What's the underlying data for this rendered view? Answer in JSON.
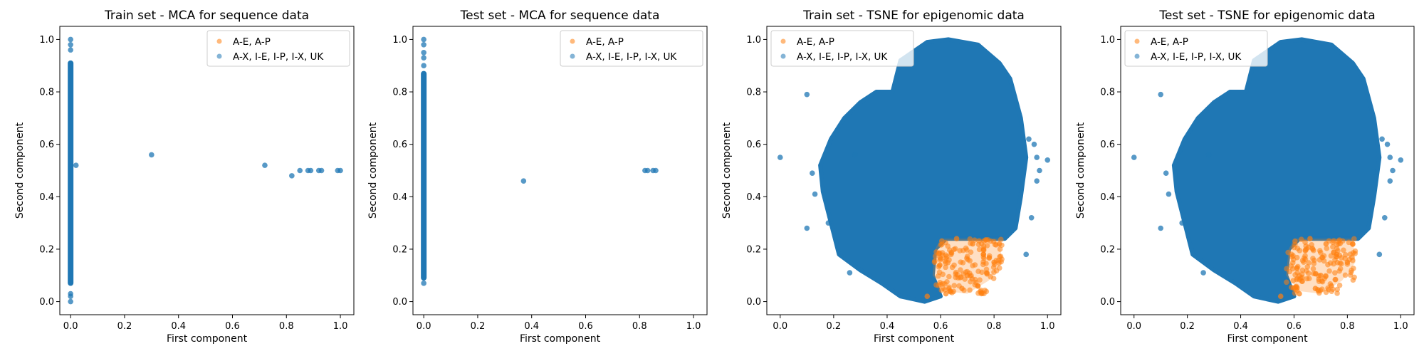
{
  "colors": {
    "orange": "#ff7f0e",
    "blue": "#1f77b4"
  },
  "chart_data": [
    {
      "type": "scatter",
      "title": "Train set - MCA for sequence data",
      "xlabel": "First component",
      "ylabel": "Second component",
      "xlim": [
        -0.04,
        1.05
      ],
      "ylim": [
        -0.05,
        1.05
      ],
      "xticks": [
        0.0,
        0.2,
        0.4,
        0.6,
        0.8,
        1.0
      ],
      "xtick_labels": [
        "0.0",
        "0.2",
        "0.4",
        "0.6",
        "0.8",
        "1.0"
      ],
      "yticks": [
        0.0,
        0.2,
        0.4,
        0.6,
        0.8,
        1.0
      ],
      "ytick_labels": [
        "0.0",
        "0.2",
        "0.4",
        "0.6",
        "0.8",
        "1.0"
      ],
      "legend_position": "top-right",
      "series": [
        {
          "name": "A-E, A-P",
          "color": "#ff7f0e",
          "points": []
        },
        {
          "name": "A-X, I-E, I-P, I-X, UK",
          "color": "#1f77b4",
          "line_x": 0.0,
          "line_y_range": [
            0.06,
            0.92
          ],
          "points": [
            [
              0,
              0.0
            ],
            [
              0,
              0.02
            ],
            [
              0,
              0.03
            ],
            [
              0,
              0.96
            ],
            [
              0,
              0.98
            ],
            [
              0,
              1.0
            ],
            [
              0.02,
              0.52
            ],
            [
              0.3,
              0.56
            ],
            [
              0.72,
              0.52
            ],
            [
              0.82,
              0.48
            ],
            [
              0.85,
              0.5
            ],
            [
              0.88,
              0.5
            ],
            [
              0.89,
              0.5
            ],
            [
              0.92,
              0.5
            ],
            [
              0.93,
              0.5
            ],
            [
              0.99,
              0.5
            ],
            [
              1.0,
              0.5
            ]
          ]
        }
      ]
    },
    {
      "type": "scatter",
      "title": "Test set - MCA for sequence data",
      "xlabel": "First component",
      "ylabel": "Second component",
      "xlim": [
        -0.04,
        1.05
      ],
      "ylim": [
        -0.05,
        1.05
      ],
      "xticks": [
        0.0,
        0.2,
        0.4,
        0.6,
        0.8,
        1.0
      ],
      "xtick_labels": [
        "0.0",
        "0.2",
        "0.4",
        "0.6",
        "0.8",
        "1.0"
      ],
      "yticks": [
        0.0,
        0.2,
        0.4,
        0.6,
        0.8,
        1.0
      ],
      "ytick_labels": [
        "0.0",
        "0.2",
        "0.4",
        "0.6",
        "0.8",
        "1.0"
      ],
      "legend_position": "top-right",
      "series": [
        {
          "name": "A-E, A-P",
          "color": "#ff7f0e",
          "points": []
        },
        {
          "name": "A-X, I-E, I-P, I-X, UK",
          "color": "#1f77b4",
          "line_x": 0.0,
          "line_y_range": [
            0.08,
            0.88
          ],
          "points": [
            [
              0,
              0.07
            ],
            [
              0,
              0.9
            ],
            [
              0,
              0.93
            ],
            [
              0,
              0.95
            ],
            [
              0,
              0.98
            ],
            [
              0,
              1.0
            ],
            [
              0.37,
              0.46
            ],
            [
              0.82,
              0.5
            ],
            [
              0.83,
              0.5
            ],
            [
              0.85,
              0.5
            ],
            [
              0.86,
              0.5
            ]
          ]
        }
      ]
    },
    {
      "type": "scatter",
      "title": "Train set - TSNE for epigenomic data",
      "xlabel": "First component",
      "ylabel": "Second component",
      "xlim": [
        -0.05,
        1.05
      ],
      "ylim": [
        -0.05,
        1.05
      ],
      "xticks": [
        0.0,
        0.2,
        0.4,
        0.6,
        0.8,
        1.0
      ],
      "xtick_labels": [
        "0.0",
        "0.2",
        "0.4",
        "0.6",
        "0.8",
        "1.0"
      ],
      "yticks": [
        0.0,
        0.2,
        0.4,
        0.6,
        0.8,
        1.0
      ],
      "ytick_labels": [
        "0.0",
        "0.2",
        "0.4",
        "0.6",
        "0.8",
        "1.0"
      ],
      "legend_position": "top-left",
      "series": [
        {
          "name": "A-E, A-P",
          "color": "#ff7f0e",
          "region": [
            [
              0.6,
              0.24
            ],
            [
              0.82,
              0.24
            ],
            [
              0.83,
              0.15
            ],
            [
              0.78,
              0.08
            ],
            [
              0.7,
              0.03
            ],
            [
              0.62,
              0.04
            ],
            [
              0.57,
              0.1
            ],
            [
              0.58,
              0.2
            ]
          ],
          "points": [
            [
              0.55,
              0.02
            ],
            [
              0.62,
              0.03
            ],
            [
              0.68,
              0.05
            ],
            [
              0.74,
              0.06
            ],
            [
              0.8,
              0.15
            ],
            [
              0.82,
              0.22
            ],
            [
              0.66,
              0.24
            ],
            [
              0.72,
              0.22
            ],
            [
              0.76,
              0.18
            ],
            [
              0.7,
              0.1
            ]
          ]
        },
        {
          "name": "A-X, I-E, I-P, I-X, UK",
          "color": "#1f77b4",
          "region": [
            [
              0.42,
              0.8
            ],
            [
              0.45,
              0.92
            ],
            [
              0.55,
              0.99
            ],
            [
              0.63,
              1.0
            ],
            [
              0.74,
              0.98
            ],
            [
              0.82,
              0.91
            ],
            [
              0.86,
              0.85
            ],
            [
              0.9,
              0.7
            ],
            [
              0.92,
              0.55
            ],
            [
              0.9,
              0.4
            ],
            [
              0.88,
              0.28
            ],
            [
              0.84,
              0.24
            ],
            [
              0.62,
              0.24
            ],
            [
              0.58,
              0.2
            ],
            [
              0.57,
              0.1
            ],
            [
              0.6,
              0.02
            ],
            [
              0.54,
              0.0
            ],
            [
              0.45,
              0.02
            ],
            [
              0.38,
              0.07
            ],
            [
              0.3,
              0.12
            ],
            [
              0.22,
              0.18
            ],
            [
              0.19,
              0.3
            ],
            [
              0.16,
              0.42
            ],
            [
              0.15,
              0.52
            ],
            [
              0.19,
              0.62
            ],
            [
              0.24,
              0.7
            ],
            [
              0.3,
              0.76
            ],
            [
              0.36,
              0.8
            ]
          ],
          "points": [
            [
              0.0,
              0.55
            ],
            [
              0.1,
              0.79
            ],
            [
              0.13,
              0.41
            ],
            [
              0.12,
              0.49
            ],
            [
              0.18,
              0.3
            ],
            [
              0.26,
              0.11
            ],
            [
              0.93,
              0.62
            ],
            [
              0.95,
              0.6
            ],
            [
              0.96,
              0.55
            ],
            [
              0.94,
              0.32
            ],
            [
              1.0,
              0.54
            ],
            [
              0.92,
              0.18
            ],
            [
              0.97,
              0.5
            ],
            [
              0.96,
              0.46
            ],
            [
              0.28,
              0.56
            ],
            [
              0.1,
              0.28
            ]
          ]
        }
      ]
    },
    {
      "type": "scatter",
      "title": "Test set - TSNE for epigenomic data",
      "xlabel": "First component",
      "ylabel": "Second component",
      "xlim": [
        -0.05,
        1.05
      ],
      "ylim": [
        -0.05,
        1.05
      ],
      "xticks": [
        0.0,
        0.2,
        0.4,
        0.6,
        0.8,
        1.0
      ],
      "xtick_labels": [
        "0.0",
        "0.2",
        "0.4",
        "0.6",
        "0.8",
        "1.0"
      ],
      "yticks": [
        0.0,
        0.2,
        0.4,
        0.6,
        0.8,
        1.0
      ],
      "ytick_labels": [
        "0.0",
        "0.2",
        "0.4",
        "0.6",
        "0.8",
        "1.0"
      ],
      "legend_position": "top-left",
      "series": [
        {
          "name": "A-E, A-P",
          "color": "#ff7f0e",
          "region": [
            [
              0.6,
              0.24
            ],
            [
              0.82,
              0.24
            ],
            [
              0.83,
              0.15
            ],
            [
              0.78,
              0.08
            ],
            [
              0.7,
              0.03
            ],
            [
              0.62,
              0.04
            ],
            [
              0.57,
              0.1
            ],
            [
              0.58,
              0.2
            ]
          ],
          "points": [
            [
              0.55,
              0.02
            ],
            [
              0.62,
              0.03
            ],
            [
              0.68,
              0.05
            ],
            [
              0.74,
              0.06
            ],
            [
              0.8,
              0.15
            ],
            [
              0.82,
              0.22
            ],
            [
              0.66,
              0.24
            ],
            [
              0.72,
              0.22
            ],
            [
              0.76,
              0.18
            ],
            [
              0.7,
              0.1
            ]
          ]
        },
        {
          "name": "A-X, I-E, I-P, I-X, UK",
          "color": "#1f77b4",
          "region": [
            [
              0.42,
              0.8
            ],
            [
              0.45,
              0.92
            ],
            [
              0.55,
              0.99
            ],
            [
              0.63,
              1.0
            ],
            [
              0.74,
              0.98
            ],
            [
              0.82,
              0.91
            ],
            [
              0.86,
              0.85
            ],
            [
              0.9,
              0.7
            ],
            [
              0.92,
              0.55
            ],
            [
              0.9,
              0.4
            ],
            [
              0.88,
              0.28
            ],
            [
              0.84,
              0.24
            ],
            [
              0.62,
              0.24
            ],
            [
              0.58,
              0.2
            ],
            [
              0.57,
              0.1
            ],
            [
              0.6,
              0.02
            ],
            [
              0.54,
              0.0
            ],
            [
              0.45,
              0.02
            ],
            [
              0.38,
              0.07
            ],
            [
              0.3,
              0.12
            ],
            [
              0.22,
              0.18
            ],
            [
              0.19,
              0.3
            ],
            [
              0.16,
              0.42
            ],
            [
              0.15,
              0.52
            ],
            [
              0.19,
              0.62
            ],
            [
              0.24,
              0.7
            ],
            [
              0.3,
              0.76
            ],
            [
              0.36,
              0.8
            ]
          ],
          "points": [
            [
              0.0,
              0.55
            ],
            [
              0.1,
              0.79
            ],
            [
              0.13,
              0.41
            ],
            [
              0.12,
              0.49
            ],
            [
              0.18,
              0.3
            ],
            [
              0.26,
              0.11
            ],
            [
              0.93,
              0.62
            ],
            [
              0.95,
              0.6
            ],
            [
              0.96,
              0.55
            ],
            [
              0.94,
              0.32
            ],
            [
              1.0,
              0.54
            ],
            [
              0.92,
              0.18
            ],
            [
              0.97,
              0.5
            ],
            [
              0.96,
              0.46
            ],
            [
              0.28,
              0.56
            ],
            [
              0.1,
              0.28
            ]
          ]
        }
      ]
    }
  ]
}
